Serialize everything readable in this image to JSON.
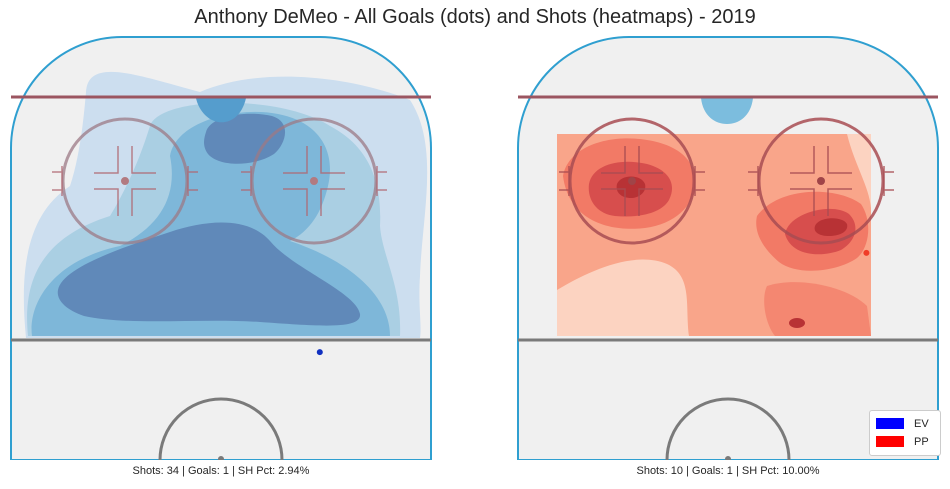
{
  "title": "Anthony DeMeo - All Goals (dots) and Shots (heatmaps) - 2019",
  "legend": [
    {
      "label": "EV",
      "color": "#0000ff"
    },
    {
      "label": "PP",
      "color": "#ff0000"
    }
  ],
  "captions": {
    "ev": "Shots: 34 | Goals: 1 | SH Pct: 2.94%",
    "pp": "Shots: 10 | Goals: 1 | SH Pct: 10.00%"
  },
  "chart_data": [
    {
      "type": "heatmap",
      "strength": "EV",
      "colormap": "Blues",
      "stats": {
        "shots": 34,
        "goals": 1,
        "sh_pct": 2.94
      },
      "goals": [
        {
          "x": 20,
          "y": -5
        }
      ],
      "goal_color": "#1030c0"
    },
    {
      "type": "heatmap",
      "strength": "PP",
      "colormap": "Reds",
      "stats": {
        "shots": 10,
        "goals": 1,
        "sh_pct": 10.0
      },
      "goals": [
        {
          "x": 28,
          "y": 36
        }
      ],
      "goal_color": "#f03c28"
    }
  ]
}
